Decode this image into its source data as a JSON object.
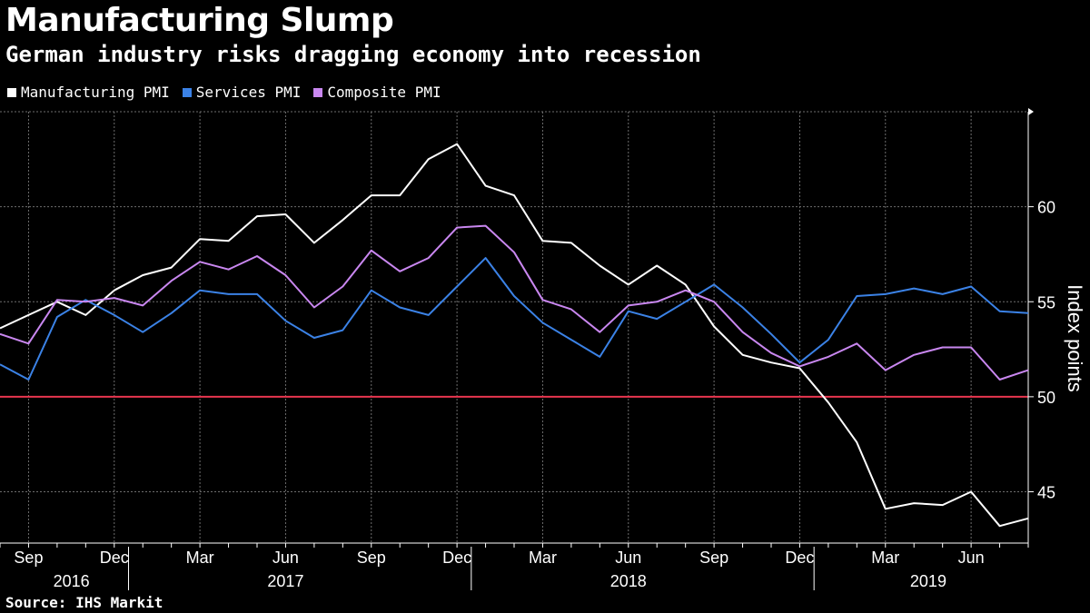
{
  "title": "Manufacturing Slump",
  "subtitle": "German industry risks dragging economy into recession",
  "source": "Source: IHS Markit",
  "legend": [
    {
      "name": "Manufacturing PMI",
      "color": "#ffffff"
    },
    {
      "name": "Services PMI",
      "color": "#3b82e6"
    },
    {
      "name": "Composite PMI",
      "color": "#c987f0"
    }
  ],
  "chart_data": {
    "type": "line",
    "x": [
      "2016-08",
      "2016-09",
      "2016-10",
      "2016-11",
      "2016-12",
      "2017-01",
      "2017-02",
      "2017-03",
      "2017-04",
      "2017-05",
      "2017-06",
      "2017-07",
      "2017-08",
      "2017-09",
      "2017-10",
      "2017-11",
      "2017-12",
      "2018-01",
      "2018-02",
      "2018-03",
      "2018-04",
      "2018-05",
      "2018-06",
      "2018-07",
      "2018-08",
      "2018-09",
      "2018-10",
      "2018-11",
      "2018-12",
      "2019-01",
      "2019-02",
      "2019-03",
      "2019-04",
      "2019-05",
      "2019-06",
      "2019-07",
      "2019-08"
    ],
    "series": [
      {
        "name": "Manufacturing PMI",
        "color": "#ffffff",
        "values": [
          53.6,
          54.3,
          55.0,
          54.3,
          55.6,
          56.4,
          56.8,
          58.3,
          58.2,
          59.5,
          59.6,
          58.1,
          59.3,
          60.6,
          60.6,
          62.5,
          63.3,
          61.1,
          60.6,
          58.2,
          58.1,
          56.9,
          55.9,
          56.9,
          55.9,
          53.7,
          52.2,
          51.8,
          51.5,
          49.7,
          47.6,
          44.1,
          44.4,
          44.3,
          45.0,
          43.2,
          43.6
        ]
      },
      {
        "name": "Services PMI",
        "color": "#3b82e6",
        "values": [
          51.7,
          50.9,
          54.2,
          55.1,
          54.3,
          53.4,
          54.4,
          55.6,
          55.4,
          55.4,
          54.0,
          53.1,
          53.5,
          55.6,
          54.7,
          54.3,
          55.8,
          57.3,
          55.3,
          53.9,
          53.0,
          52.1,
          54.5,
          54.1,
          55.0,
          55.9,
          54.7,
          53.3,
          51.8,
          53.0,
          55.3,
          55.4,
          55.7,
          55.4,
          55.8,
          54.5,
          54.4
        ]
      },
      {
        "name": "Composite PMI",
        "color": "#c987f0",
        "values": [
          53.3,
          52.8,
          55.1,
          55.0,
          55.2,
          54.8,
          56.1,
          57.1,
          56.7,
          57.4,
          56.4,
          54.7,
          55.8,
          57.7,
          56.6,
          57.3,
          58.9,
          59.0,
          57.6,
          55.1,
          54.6,
          53.4,
          54.8,
          55.0,
          55.6,
          55.0,
          53.4,
          52.3,
          51.6,
          52.1,
          52.8,
          51.4,
          52.2,
          52.6,
          52.6,
          50.9,
          51.4
        ]
      }
    ],
    "reference_line": {
      "value": 50,
      "color": "#e8364f"
    },
    "ylim": [
      42.3,
      65
    ],
    "yticks": [
      45,
      50,
      55,
      60
    ],
    "ylabel": "Index points",
    "x_tick_labels": [
      {
        "index": 1,
        "label": "Sep"
      },
      {
        "index": 4,
        "label": "Dec"
      },
      {
        "index": 7,
        "label": "Mar"
      },
      {
        "index": 10,
        "label": "Jun"
      },
      {
        "index": 13,
        "label": "Sep"
      },
      {
        "index": 16,
        "label": "Dec"
      },
      {
        "index": 19,
        "label": "Mar"
      },
      {
        "index": 22,
        "label": "Jun"
      },
      {
        "index": 25,
        "label": "Sep"
      },
      {
        "index": 28,
        "label": "Dec"
      },
      {
        "index": 31,
        "label": "Mar"
      },
      {
        "index": 34,
        "label": "Jun"
      }
    ],
    "year_labels": [
      {
        "index": 2.5,
        "label": "2016"
      },
      {
        "index": 10.0,
        "label": "2017"
      },
      {
        "index": 22.0,
        "label": "2018"
      },
      {
        "index": 32.5,
        "label": "2019"
      }
    ],
    "year_separators": [
      4.5,
      16.5,
      28.5
    ],
    "grid": true
  }
}
